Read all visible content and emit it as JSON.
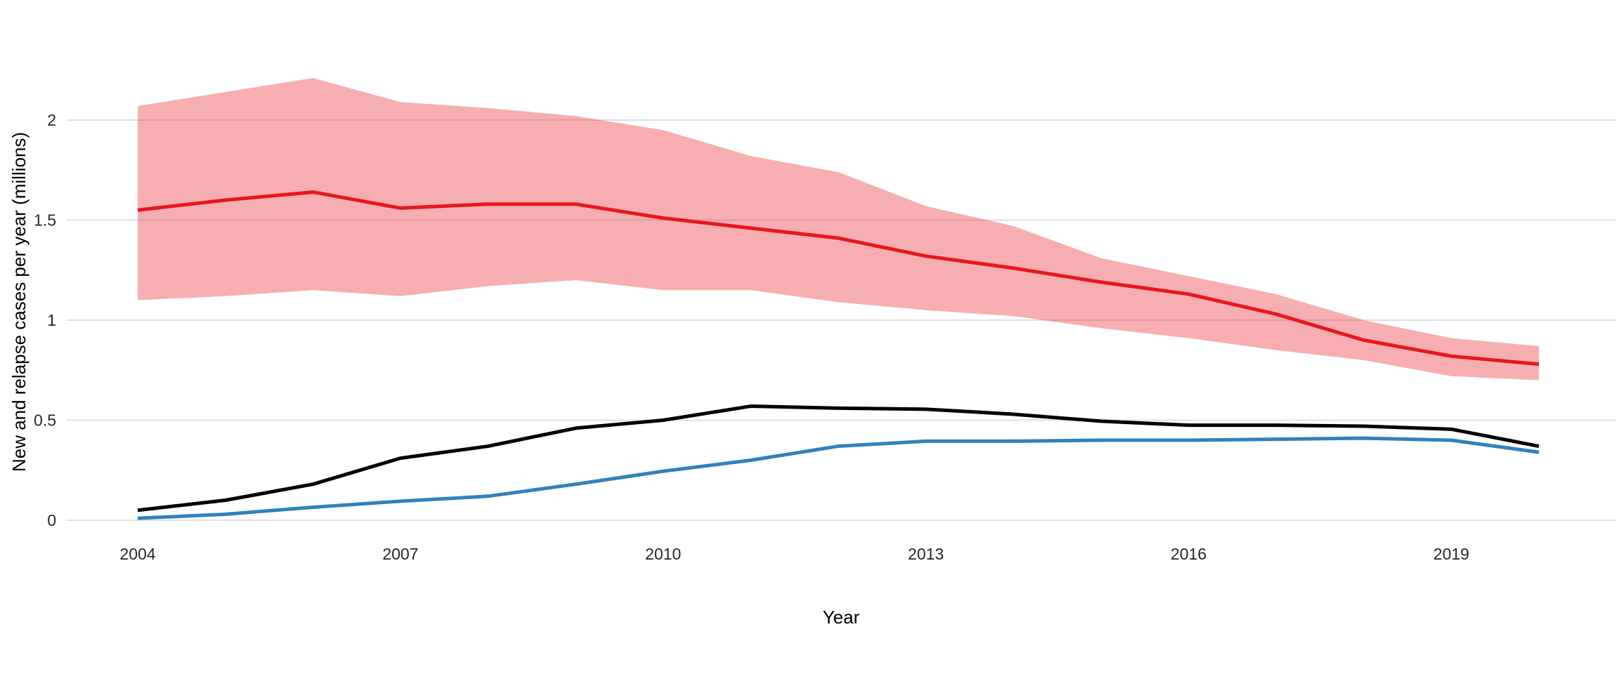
{
  "figure": {
    "background_color": "#ffffff",
    "grid_color": "#e0e0e0",
    "tick_text_color": "#262626",
    "axis_title_color": "#000000"
  },
  "chart_data": {
    "type": "line",
    "title": "",
    "xlabel": "Year",
    "ylabel": "New and relapse cases per year (millions)",
    "grid": true,
    "legend_position": "none",
    "x": [
      2004,
      2005,
      2006,
      2007,
      2008,
      2009,
      2010,
      2011,
      2012,
      2013,
      2014,
      2015,
      2016,
      2017,
      2018,
      2019,
      2020
    ],
    "x_tick_years": [
      2004,
      2007,
      2010,
      2013,
      2016,
      2019
    ],
    "x_tick_labels": [
      "2004",
      "2007",
      "2010",
      "2013",
      "2016",
      "2019"
    ],
    "y_tick_values": [
      0,
      0.5,
      1,
      1.5,
      2
    ],
    "y_tick_labels": [
      "0",
      "0.5",
      "1",
      "1.5",
      "2"
    ],
    "xlim": [
      2003.5,
      2020.9
    ],
    "ylim": [
      0,
      2.3
    ],
    "series": [
      {
        "name": "incidence-uncertainty-band",
        "type": "band",
        "color": "rgba(232,23,29,0.35)",
        "upper": [
          2.07,
          2.14,
          2.21,
          2.09,
          2.06,
          2.02,
          1.95,
          1.82,
          1.74,
          1.57,
          1.47,
          1.31,
          1.22,
          1.13,
          1.0,
          0.91,
          0.87
        ],
        "lower": [
          1.1,
          1.12,
          1.15,
          1.12,
          1.17,
          1.2,
          1.15,
          1.15,
          1.09,
          1.05,
          1.02,
          0.96,
          0.91,
          0.85,
          0.8,
          0.72,
          0.7
        ]
      },
      {
        "name": "estimated-incidence-line",
        "type": "line",
        "color": "#e8171d",
        "stroke_width": 5,
        "values": [
          1.55,
          1.6,
          1.64,
          1.56,
          1.58,
          1.58,
          1.51,
          1.46,
          1.41,
          1.32,
          1.26,
          1.19,
          1.13,
          1.03,
          0.9,
          0.82,
          0.78
        ]
      },
      {
        "name": "notified-cases-line",
        "type": "line",
        "color": "#000000",
        "stroke_width": 5,
        "values": [
          0.05,
          0.1,
          0.18,
          0.31,
          0.37,
          0.46,
          0.5,
          0.57,
          0.56,
          0.555,
          0.53,
          0.495,
          0.475,
          0.475,
          0.47,
          0.455,
          0.37
        ]
      },
      {
        "name": "started-on-art-line",
        "type": "line",
        "color": "#3081bd",
        "stroke_width": 5,
        "values": [
          0.01,
          0.03,
          0.065,
          0.095,
          0.12,
          0.18,
          0.245,
          0.3,
          0.37,
          0.395,
          0.395,
          0.4,
          0.4,
          0.405,
          0.41,
          0.4,
          0.34
        ]
      }
    ]
  }
}
